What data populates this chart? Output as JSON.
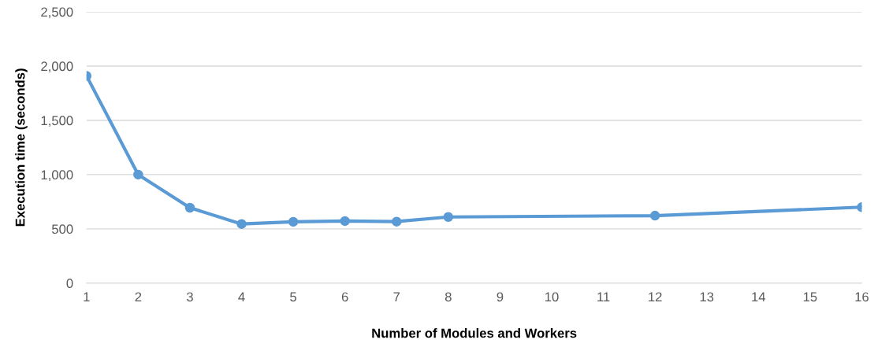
{
  "chart_data": {
    "type": "line",
    "xlabel": "Number of Modules and Workers",
    "ylabel": "Execution time (seconds)",
    "x": [
      1,
      2,
      3,
      4,
      5,
      6,
      7,
      8,
      12,
      16
    ],
    "series": [
      {
        "color": "#5b9bd5",
        "values": [
          1910,
          1000,
          695,
          545,
          565,
          572,
          567,
          610,
          622,
          700
        ]
      }
    ],
    "xlim": [
      1,
      16
    ],
    "xticks": [
      1,
      2,
      3,
      4,
      5,
      6,
      7,
      8,
      9,
      10,
      11,
      12,
      13,
      14,
      15,
      16
    ],
    "ylim": [
      0,
      2500
    ],
    "yticks": [
      0,
      500,
      {
        "value": 1000,
        "label": "1,000"
      },
      {
        "value": 1500,
        "label": "1,500"
      },
      {
        "value": 2000,
        "label": "2,000"
      },
      {
        "value": 2500,
        "label": "2,500"
      }
    ],
    "grid": "y",
    "marker": "circle",
    "line_style": "solid",
    "legend": false
  }
}
